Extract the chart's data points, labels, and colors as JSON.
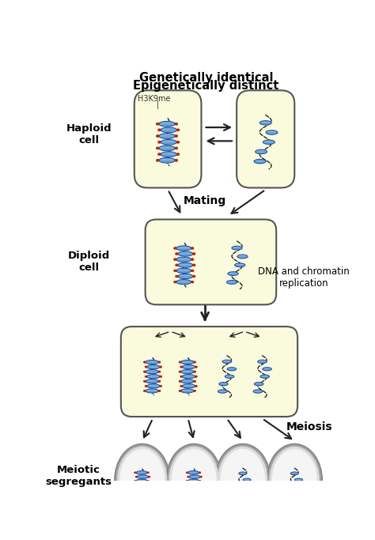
{
  "title_line1": "Genetically identical",
  "title_line2": "Epigenetically distinct",
  "label_haploid": "Haploid\ncell",
  "label_diploid": "Diploid\ncell",
  "label_mating": "Mating",
  "label_dna_rep": "DNA and chromatin\nreplication",
  "label_meiosis": "Meiosis",
  "label_meiotic": "Meiotic\nsegregants",
  "label_h3k9me": "H3K9me",
  "bg_color": "#FFFFFF",
  "cell_fill_yellow": "#FAFADC",
  "cell_stroke": "#555555",
  "nuc_fill": "#7BAFD4",
  "nuc_dark": "#2255AA",
  "nuc_light": "#AACCEE",
  "dna_color": "#111111",
  "mark_color": "#CC2200",
  "mark_edge": "#991100",
  "arrow_color": "#222222",
  "meiotic_fill_outer": "#BBBBBB",
  "meiotic_fill_inner": "#F0F0F0",
  "meiotic_stroke": "#666666"
}
